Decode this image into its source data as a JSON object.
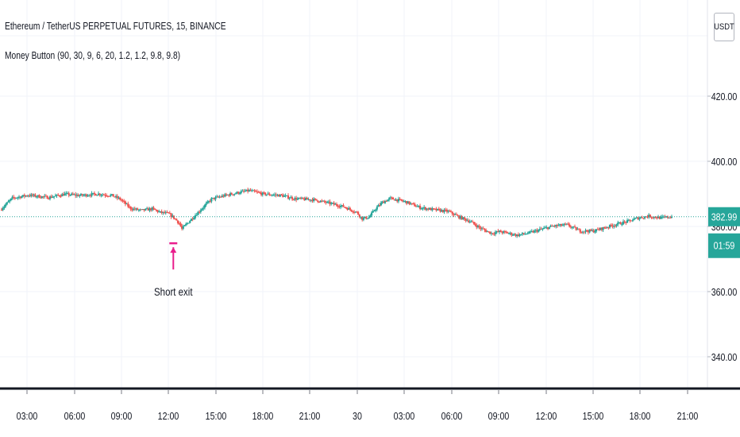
{
  "legend": {
    "title": "Ethereum / TetherUS PERPETUAL FUTURES, 15, BINANCE",
    "study": "Money Button (90, 30, 9, 6, 20, 1.2, 1.2, 9.8, 9.8)"
  },
  "currency_button": "USDT",
  "colors": {
    "up": "#26a69a",
    "down": "#ef5350",
    "marker": "#e91e8c",
    "price_line": "#26a69a",
    "grid": "#f0f3fa",
    "axis_text": "#131722"
  },
  "chart_data": {
    "type": "candlestick",
    "y_ticks": [
      420,
      400,
      380,
      360,
      340
    ],
    "y_tick_labels": [
      "420.00",
      "400.00",
      "380.00",
      "360.00",
      "340.00"
    ],
    "x_tick_labels": [
      "03:00",
      "06:00",
      "09:00",
      "12:00",
      "15:00",
      "18:00",
      "21:00",
      "30",
      "03:00",
      "06:00",
      "09:00",
      "12:00",
      "15:00",
      "18:00",
      "21:00"
    ],
    "last_price": "382.99",
    "countdown": "01:59",
    "annotation": {
      "label": "Short exit",
      "time": "12:00",
      "price": 380.2
    },
    "close_path": [
      [
        0,
        385.5
      ],
      [
        8,
        388.7
      ],
      [
        20,
        389.6
      ],
      [
        35,
        388.9
      ],
      [
        47,
        389.9
      ],
      [
        58,
        389.5
      ],
      [
        72,
        390.0
      ],
      [
        82,
        389.5
      ],
      [
        88,
        388.4
      ],
      [
        96,
        385.5
      ],
      [
        104,
        384.9
      ],
      [
        112,
        385.4
      ],
      [
        118,
        384.3
      ],
      [
        124,
        383.9
      ],
      [
        128,
        382.7
      ],
      [
        132,
        381.0
      ],
      [
        134,
        379.2
      ],
      [
        138,
        381.0
      ],
      [
        144,
        383.5
      ],
      [
        150,
        386.0
      ],
      [
        156,
        388.4
      ],
      [
        166,
        389.5
      ],
      [
        176,
        390.4
      ],
      [
        184,
        391.0
      ],
      [
        194,
        390.0
      ],
      [
        208,
        389.5
      ],
      [
        218,
        388.5
      ],
      [
        232,
        388.2
      ],
      [
        244,
        387.1
      ],
      [
        254,
        386.1
      ],
      [
        264,
        384.3
      ],
      [
        268,
        382.4
      ],
      [
        273,
        382.8
      ],
      [
        278,
        385.5
      ],
      [
        283,
        387.4
      ],
      [
        289,
        388.6
      ],
      [
        300,
        387.6
      ],
      [
        311,
        385.8
      ],
      [
        320,
        385.2
      ],
      [
        332,
        384.6
      ],
      [
        340,
        382.9
      ],
      [
        348,
        381.6
      ],
      [
        356,
        379.4
      ],
      [
        364,
        377.9
      ],
      [
        370,
        378.4
      ],
      [
        376,
        378.0
      ],
      [
        383,
        377.3
      ],
      [
        392,
        378.0
      ],
      [
        400,
        379.0
      ],
      [
        410,
        380.1
      ],
      [
        420,
        380.5
      ],
      [
        430,
        378.6
      ],
      [
        440,
        378.6
      ],
      [
        452,
        380.1
      ],
      [
        461,
        381.1
      ],
      [
        467,
        381.7
      ],
      [
        472,
        382.5
      ],
      [
        481,
        383.2
      ],
      [
        490,
        382.6
      ],
      [
        498,
        383.0
      ]
    ]
  }
}
